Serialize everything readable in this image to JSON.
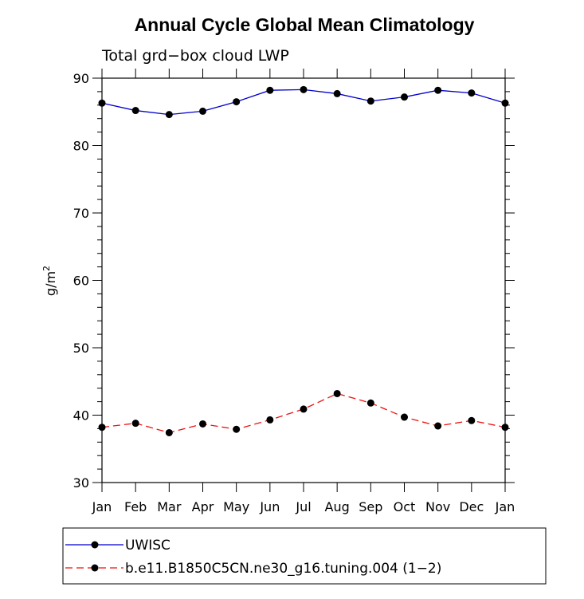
{
  "chart_data": {
    "type": "line",
    "title": "Annual Cycle Global Mean Climatology",
    "subtitle": "Total grd−box cloud LWP",
    "ylabel": "g/m",
    "ylabel_superscript": "2",
    "xlabel": "",
    "ylim": [
      30,
      90
    ],
    "yticks": [
      30,
      40,
      50,
      60,
      70,
      80,
      90
    ],
    "categories": [
      "Jan",
      "Feb",
      "Mar",
      "Apr",
      "May",
      "Jun",
      "Jul",
      "Aug",
      "Sep",
      "Oct",
      "Nov",
      "Dec",
      "Jan"
    ],
    "series": [
      {
        "name": "UWISC",
        "color": "#0000cc",
        "dash": "solid",
        "values": [
          86.3,
          85.2,
          84.6,
          85.1,
          86.5,
          88.2,
          88.3,
          87.7,
          86.6,
          87.2,
          88.2,
          87.8,
          86.3
        ]
      },
      {
        "name": "b.e11.B1850C5CN.ne30_g16.tuning.004 (1−2)",
        "color": "#ee1111",
        "dash": "dashed",
        "values": [
          38.2,
          38.8,
          37.4,
          38.7,
          37.9,
          39.3,
          40.9,
          43.2,
          41.8,
          39.7,
          38.4,
          39.2,
          38.2
        ]
      }
    ],
    "legend_position": "bottom"
  }
}
